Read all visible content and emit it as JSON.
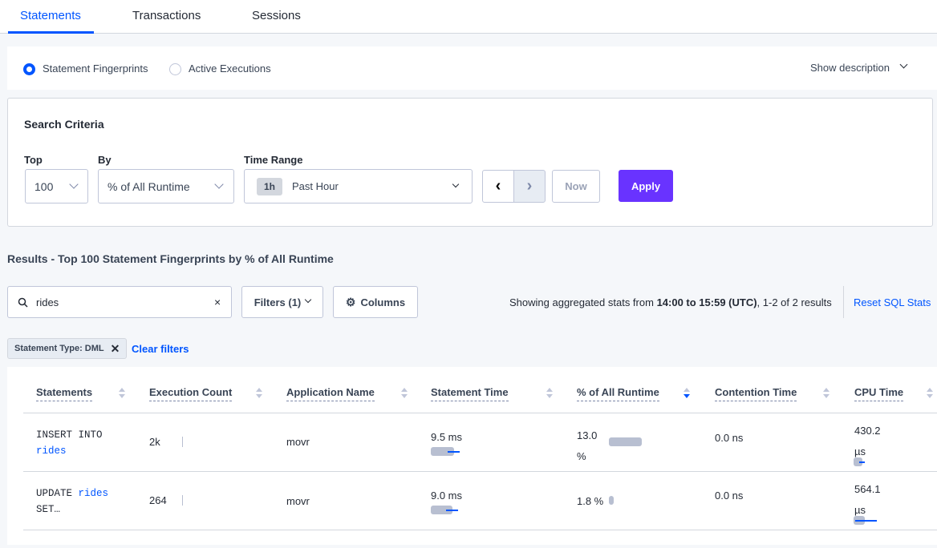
{
  "tabs": [
    "Statements",
    "Transactions",
    "Sessions"
  ],
  "mode": {
    "options": [
      "Statement Fingerprints",
      "Active Executions"
    ],
    "selected": "Statement Fingerprints",
    "show_description": "Show description"
  },
  "search_criteria": {
    "title": "Search Criteria",
    "top_label": "Top",
    "top_value": "100",
    "by_label": "By",
    "by_value": "% of All Runtime",
    "time_label": "Time Range",
    "time_badge": "1h",
    "time_value": "Past Hour",
    "now": "Now",
    "apply": "Apply"
  },
  "results": {
    "title": "Results - Top 100 Statement Fingerprints by % of All Runtime",
    "search_value": "rides",
    "filters": "Filters (1)",
    "columns": "Columns",
    "stats_prefix": "Showing aggregated stats from ",
    "stats_range": "14:00 to 15:59 (UTC)",
    "stats_suffix": ", 1-2 of 2 results",
    "reset": "Reset SQL Stats",
    "filter_tag": "Statement Type: DML",
    "clear_filters": "Clear filters"
  },
  "colors": {
    "accent": "#0055ff",
    "apply": "#6933ff"
  },
  "table": {
    "headers": [
      "Statements",
      "Execution Count",
      "Application Name",
      "Statement Time",
      "% of All Runtime",
      "Contention Time",
      "CPU Time"
    ],
    "sorted_column": "% of All Runtime",
    "sort_direction": "descending",
    "rows": [
      {
        "stmt_a": "INSERT INTO",
        "stmt_b": "rides",
        "stmt_c": "",
        "count": "2k",
        "app": "movr",
        "stmt_time": "9.5 ms",
        "pct_a": "13.0",
        "pct_b": "%",
        "contention": "0.0 ns",
        "cpu_a": "430.2",
        "cpu_b": "µs"
      },
      {
        "stmt_a": "UPDATE",
        "stmt_b": "rides",
        "stmt_c": "SET…",
        "count": "264",
        "app": "movr",
        "stmt_time": "9.0 ms",
        "pct_a": "1.8 %",
        "pct_b": "",
        "contention": "0.0 ns",
        "cpu_a": "564.1",
        "cpu_b": "µs"
      }
    ]
  }
}
